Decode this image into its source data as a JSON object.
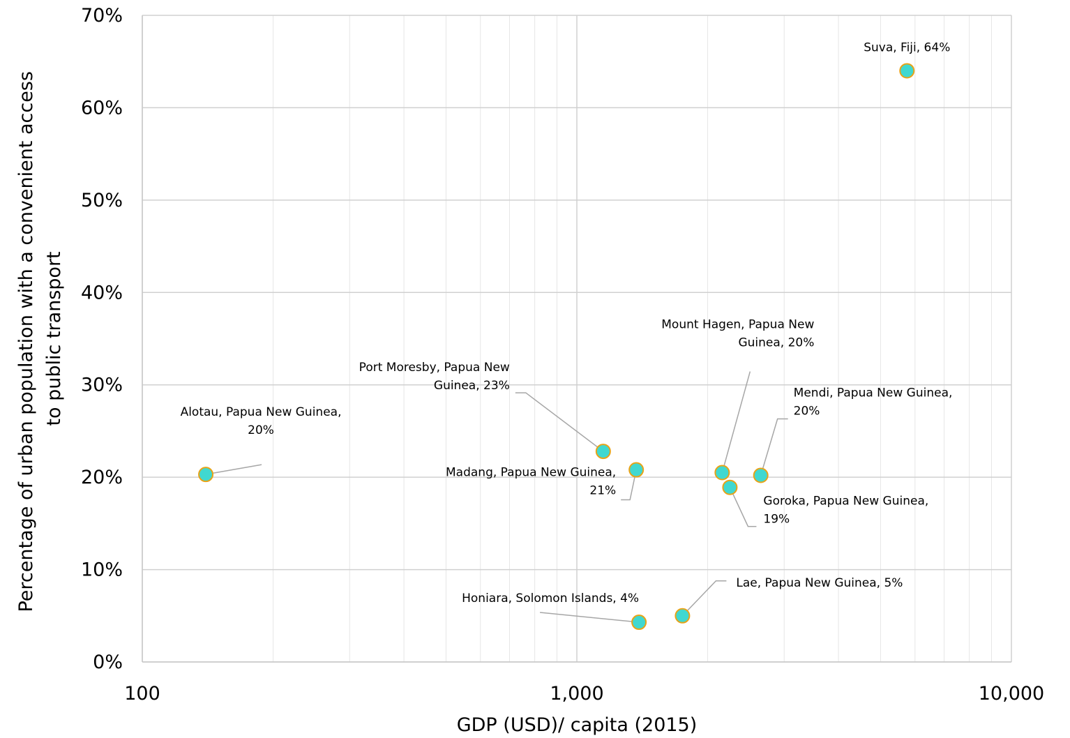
{
  "chart_data": {
    "type": "scatter",
    "title": "",
    "xlabel": "GDP (USD)/ capita (2015)",
    "ylabel": [
      "Percentage of urban population with a convenient access",
      "to public transport"
    ],
    "x_scale": "log",
    "xlim": [
      100,
      10000
    ],
    "ylim": [
      0,
      0.7
    ],
    "x_ticks": [
      100,
      1000,
      10000
    ],
    "x_tick_labels": [
      "100",
      "1,000",
      "10,000"
    ],
    "y_ticks": [
      0,
      0.1,
      0.2,
      0.3,
      0.4,
      0.5,
      0.6,
      0.7
    ],
    "y_tick_labels": [
      "0%",
      "10%",
      "20%",
      "30%",
      "40%",
      "50%",
      "60%",
      "70%"
    ],
    "grid": true,
    "legend": "none",
    "marker": {
      "fill": "#40d8d0",
      "stroke": "#e8a317"
    },
    "points": [
      {
        "x": 140,
        "y": 0.203,
        "label": [
          "Alotau, Papua New Guinea,",
          "20%"
        ]
      },
      {
        "x": 1150,
        "y": 0.228,
        "label": [
          "Port Moresby, Papua New",
          "Guinea, 23%"
        ]
      },
      {
        "x": 1370,
        "y": 0.208,
        "label": [
          "Madang, Papua New Guinea,",
          "21%"
        ]
      },
      {
        "x": 1390,
        "y": 0.043,
        "label": [
          "Honiara, Solomon Islands, 4%"
        ]
      },
      {
        "x": 1750,
        "y": 0.05,
        "label": [
          "Lae, Papua New Guinea, 5%"
        ]
      },
      {
        "x": 2160,
        "y": 0.205,
        "label": [
          "Mount Hagen, Papua New",
          "Guinea, 20%"
        ]
      },
      {
        "x": 2250,
        "y": 0.189,
        "label": [
          "Goroka, Papua New Guinea,",
          "19%"
        ]
      },
      {
        "x": 2650,
        "y": 0.202,
        "label": [
          "Mendi, Papua New Guinea,",
          "20%"
        ]
      },
      {
        "x": 5750,
        "y": 0.64,
        "label": [
          "Suva, Fiji, 64%"
        ]
      }
    ]
  }
}
